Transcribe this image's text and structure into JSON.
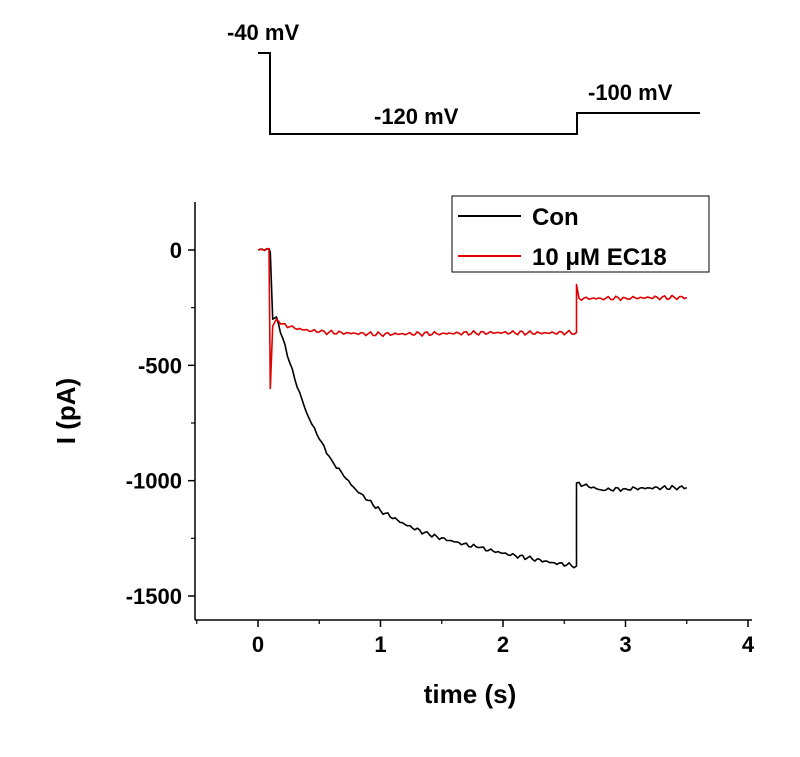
{
  "protocol": {
    "segments": [
      {
        "label": "-40 mV",
        "voltage_mV": -40,
        "t_start": 0.0,
        "t_end": 0.1
      },
      {
        "label": "-120 mV",
        "voltage_mV": -120,
        "t_start": 0.1,
        "t_end": 2.6
      },
      {
        "label": "-100 mV",
        "voltage_mV": -100,
        "t_start": 2.6,
        "t_end": 3.6
      }
    ]
  },
  "chart_data": {
    "type": "line",
    "title": "",
    "xlabel": "time (s)",
    "ylabel": "I (pA)",
    "xlim": [
      -0.5,
      4
    ],
    "ylim": [
      -1600,
      200
    ],
    "xticks": [
      0,
      1,
      2,
      3,
      4
    ],
    "yticks": [
      0,
      -500,
      -1000,
      -1500
    ],
    "legend_position": "top-right",
    "series": [
      {
        "name": "Con",
        "color": "#000000",
        "points": [
          [
            0.0,
            0
          ],
          [
            0.09,
            5
          ],
          [
            0.1,
            -10
          ],
          [
            0.12,
            -300
          ],
          [
            0.15,
            -290
          ],
          [
            0.2,
            -380
          ],
          [
            0.3,
            -560
          ],
          [
            0.4,
            -710
          ],
          [
            0.5,
            -820
          ],
          [
            0.6,
            -910
          ],
          [
            0.7,
            -980
          ],
          [
            0.8,
            -1040
          ],
          [
            1.0,
            -1130
          ],
          [
            1.2,
            -1190
          ],
          [
            1.4,
            -1235
          ],
          [
            1.6,
            -1265
          ],
          [
            1.8,
            -1290
          ],
          [
            2.0,
            -1315
          ],
          [
            2.2,
            -1335
          ],
          [
            2.4,
            -1355
          ],
          [
            2.6,
            -1370
          ],
          [
            2.6,
            -1010
          ],
          [
            2.8,
            -1040
          ],
          [
            3.0,
            -1035
          ],
          [
            3.2,
            -1032
          ],
          [
            3.4,
            -1030
          ],
          [
            3.5,
            -1030
          ]
        ]
      },
      {
        "name": "10 μM EC18",
        "color": "#e00000",
        "points": [
          [
            0.0,
            0
          ],
          [
            0.09,
            5
          ],
          [
            0.1,
            -600
          ],
          [
            0.12,
            -330
          ],
          [
            0.15,
            -300
          ],
          [
            0.2,
            -320
          ],
          [
            0.3,
            -340
          ],
          [
            0.5,
            -355
          ],
          [
            0.8,
            -362
          ],
          [
            1.0,
            -365
          ],
          [
            1.5,
            -362
          ],
          [
            2.0,
            -358
          ],
          [
            2.3,
            -360
          ],
          [
            2.6,
            -358
          ],
          [
            2.6,
            -150
          ],
          [
            2.62,
            -210
          ],
          [
            2.8,
            -210
          ],
          [
            3.0,
            -208
          ],
          [
            3.2,
            -207
          ],
          [
            3.4,
            -206
          ],
          [
            3.5,
            -206
          ]
        ]
      }
    ]
  }
}
